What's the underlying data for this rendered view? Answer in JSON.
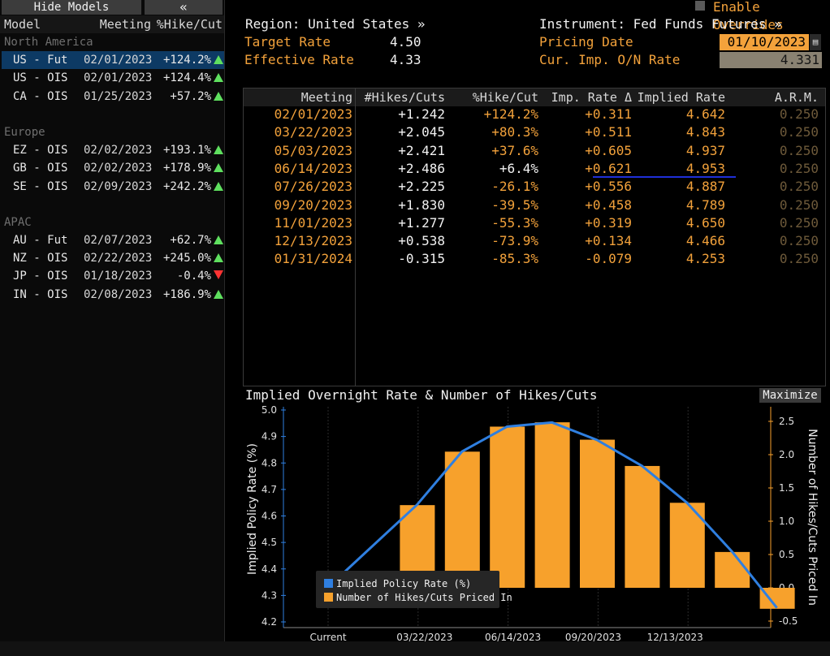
{
  "left_panel": {
    "hide_models_label": "Hide Models",
    "collapse_label": "«",
    "col_model": "Model",
    "col_meeting": "Meeting",
    "col_hike": "%Hike/Cut",
    "groups": [
      {
        "name": "North America",
        "rows": [
          {
            "model": "US - Fut",
            "meeting": "02/01/2023",
            "hike": "+124.2%",
            "dir": "up",
            "selected": true
          },
          {
            "model": "US - OIS",
            "meeting": "02/01/2023",
            "hike": "+124.4%",
            "dir": "up"
          },
          {
            "model": "CA - OIS",
            "meeting": "01/25/2023",
            "hike": "+57.2%",
            "dir": "up"
          }
        ]
      },
      {
        "name": "Europe",
        "rows": [
          {
            "model": "EZ - OIS",
            "meeting": "02/02/2023",
            "hike": "+193.1%",
            "dir": "up"
          },
          {
            "model": "GB - OIS",
            "meeting": "02/02/2023",
            "hike": "+178.9%",
            "dir": "up"
          },
          {
            "model": "SE - OIS",
            "meeting": "02/09/2023",
            "hike": "+242.2%",
            "dir": "up"
          }
        ]
      },
      {
        "name": "APAC",
        "rows": [
          {
            "model": "AU - Fut",
            "meeting": "02/07/2023",
            "hike": "+62.7%",
            "dir": "up"
          },
          {
            "model": "NZ - OIS",
            "meeting": "02/22/2023",
            "hike": "+245.0%",
            "dir": "up"
          },
          {
            "model": "JP - OIS",
            "meeting": "01/18/2023",
            "hike": "-0.4%",
            "dir": "down"
          },
          {
            "model": "IN - OIS",
            "meeting": "02/08/2023",
            "hike": "+186.9%",
            "dir": "up"
          }
        ]
      }
    ]
  },
  "header": {
    "enable_overrides": "Enable Overrides",
    "region": "Region: United States »",
    "instrument": "Instrument: Fed Funds Futures »",
    "target_rate_label": "Target Rate",
    "target_rate": "4.50",
    "effective_rate_label": "Effective Rate",
    "effective_rate": "4.33",
    "pricing_date_label": "Pricing Date",
    "pricing_date": "01/10/2023",
    "on_rate_label": "Cur. Imp. O/N Rate",
    "on_rate": "4.331"
  },
  "table": {
    "columns": [
      "Meeting",
      "#Hikes/Cuts",
      "%Hike/Cut",
      "Imp. Rate Δ",
      "Implied Rate",
      "A.R.M."
    ],
    "rows": [
      [
        "02/01/2023",
        "+1.242",
        "+124.2%",
        "+0.311",
        "4.642",
        "0.250"
      ],
      [
        "03/22/2023",
        "+2.045",
        "+80.3%",
        "+0.511",
        "4.843",
        "0.250"
      ],
      [
        "05/03/2023",
        "+2.421",
        "+37.6%",
        "+0.605",
        "4.937",
        "0.250"
      ],
      [
        "06/14/2023",
        "+2.486",
        "+6.4%",
        "+0.621",
        "4.953",
        "0.250"
      ],
      [
        "07/26/2023",
        "+2.225",
        "-26.1%",
        "+0.556",
        "4.887",
        "0.250"
      ],
      [
        "09/20/2023",
        "+1.830",
        "-39.5%",
        "+0.458",
        "4.789",
        "0.250"
      ],
      [
        "11/01/2023",
        "+1.277",
        "-55.3%",
        "+0.319",
        "4.650",
        "0.250"
      ],
      [
        "12/13/2023",
        "+0.538",
        "-73.9%",
        "+0.134",
        "4.466",
        "0.250"
      ],
      [
        "01/31/2024",
        "-0.315",
        "-85.3%",
        "-0.079",
        "4.253",
        "0.250"
      ]
    ]
  },
  "chart_title": "Implied Overnight Rate & Number of Hikes/Cuts",
  "maximize_label": "Maximize",
  "colors": {
    "orange": "#f7a12c",
    "blue": "#2f7fe0",
    "selected_row": "#0d3a64",
    "up": "#5fe05f",
    "down": "#ff3333"
  },
  "chart_data": {
    "type": "bar",
    "title": "Implied Overnight Rate & Number of Hikes/Cuts",
    "ylabel_left": "Implied Policy Rate (%)",
    "ylabel_right": "Number of Hikes/Cuts Priced In",
    "y_left_range": [
      4.2,
      5.0
    ],
    "y_left_ticks": [
      "5.0",
      "4.9",
      "4.8",
      "4.7",
      "4.6",
      "4.5",
      "4.4",
      "4.3",
      "4.2"
    ],
    "y_right_range": [
      -0.5,
      2.5
    ],
    "y_right_ticks": [
      "2.5",
      "2.0",
      "1.5",
      "1.0",
      "0.5",
      "0.0",
      "-0.5"
    ],
    "x_ticks": [
      "Current",
      "03/22/2023",
      "06/14/2023",
      "09/20/2023",
      "12/13/2023"
    ],
    "categories": [
      "Current",
      "02/01/2023",
      "03/22/2023",
      "05/03/2023",
      "06/14/2023",
      "07/26/2023",
      "09/20/2023",
      "11/01/2023",
      "12/13/2023",
      "01/31/2024"
    ],
    "series": [
      {
        "name": "Implied Policy Rate (%)",
        "type": "line",
        "axis": "left",
        "values": [
          4.331,
          4.642,
          4.843,
          4.937,
          4.953,
          4.887,
          4.789,
          4.65,
          4.466,
          4.253
        ]
      },
      {
        "name": "Number of Hikes/Cuts Priced In",
        "type": "bar",
        "axis": "right",
        "values": [
          null,
          1.242,
          2.045,
          2.421,
          2.486,
          2.225,
          1.83,
          1.277,
          0.538,
          -0.315
        ]
      }
    ],
    "legend_position": "bottom-left",
    "grid": "vertical"
  }
}
